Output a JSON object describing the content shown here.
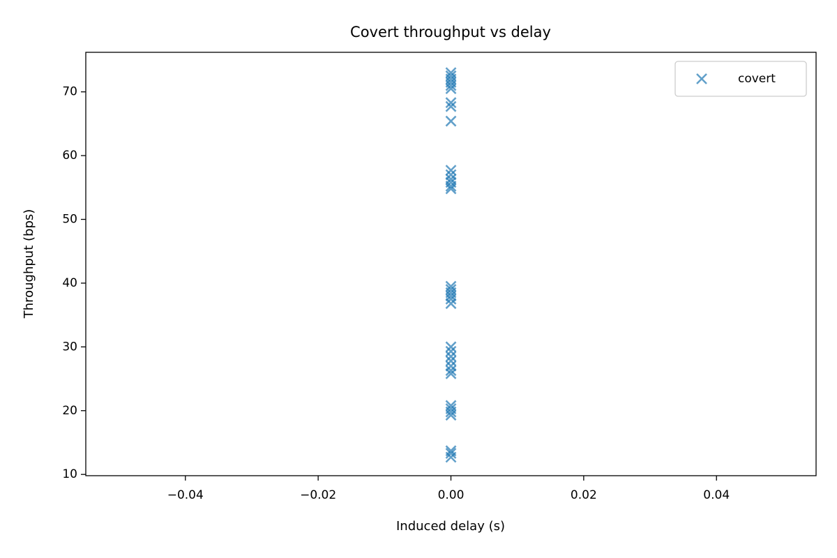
{
  "chart_data": {
    "type": "scatter",
    "title": "Covert throughput vs delay",
    "xlabel": "Induced delay (s)",
    "ylabel": "Throughput (bps)",
    "xlim": [
      -0.055,
      0.055
    ],
    "xticks": [
      {
        "value": -0.04,
        "label": "−0.04"
      },
      {
        "value": -0.02,
        "label": "−0.02"
      },
      {
        "value": 0,
        "label": "0.00"
      },
      0.02,
      0.04
    ],
    "ylim": [
      9.8,
      76.2
    ],
    "yticks": [
      10,
      20,
      30,
      40,
      50,
      60,
      70
    ],
    "legend": "upper right",
    "series": [
      {
        "name": "covert",
        "color": "#1f77b4",
        "x": [
          0,
          0,
          0,
          0,
          0,
          0,
          0,
          0,
          0,
          0,
          0,
          0,
          0,
          0,
          0,
          0,
          0,
          0,
          0,
          0,
          0,
          0,
          0,
          0,
          0,
          0,
          0,
          0,
          0,
          0,
          0,
          0,
          0,
          0,
          0
        ],
        "values": [
          73,
          72.5,
          72,
          71.5,
          71,
          70.5,
          68.3,
          67.7,
          65.4,
          57.7,
          57,
          56.3,
          55.8,
          55.2,
          54.8,
          39.5,
          39,
          38.5,
          38,
          37.5,
          36.8,
          30,
          29.3,
          28.5,
          27.8,
          27,
          26.3,
          25.8,
          20.8,
          20.3,
          19.8,
          19.3,
          13.7,
          13.3,
          12.7
        ]
      }
    ]
  }
}
